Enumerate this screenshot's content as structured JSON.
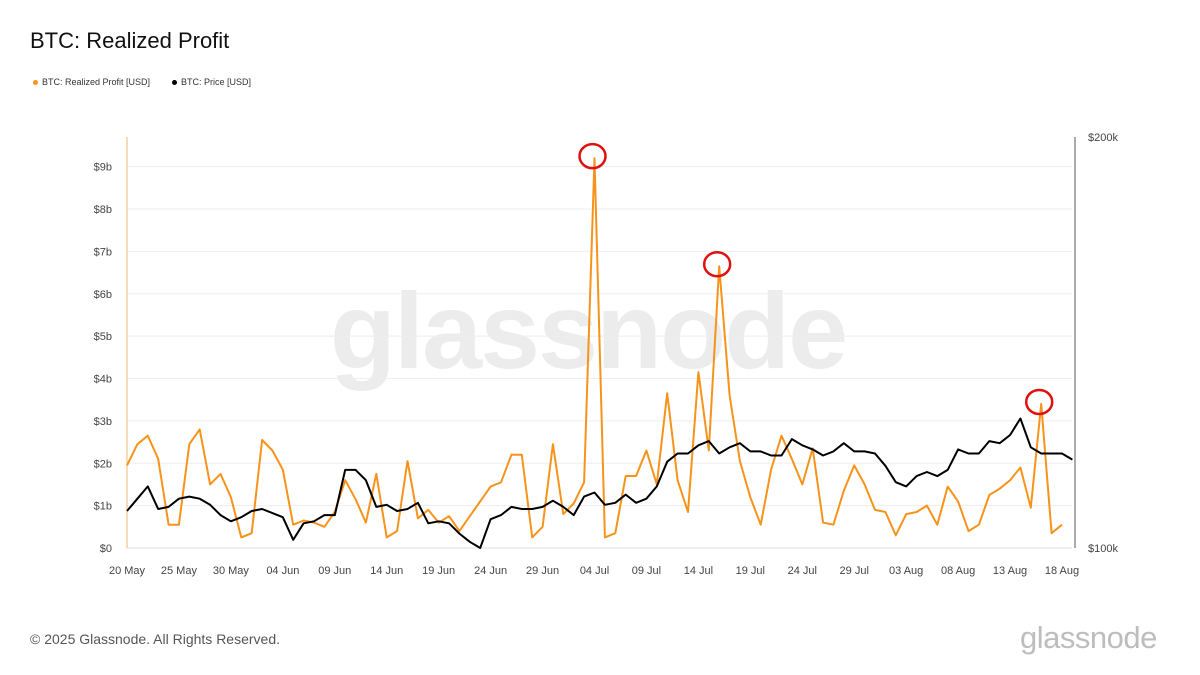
{
  "title": "BTC: Realized Profit",
  "legend": [
    {
      "label": "BTC: Realized Profit [USD]",
      "color": "#f7931a"
    },
    {
      "label": "BTC: Price [USD]",
      "color": "#000000"
    }
  ],
  "footer": "© 2025 Glassnode. All Rights Reserved.",
  "brand": "glassnode",
  "chart_data": {
    "type": "line",
    "x_ticks": [
      "20 May",
      "25 May",
      "30 May",
      "04 Jun",
      "09 Jun",
      "14 Jun",
      "19 Jun",
      "24 Jun",
      "29 Jun",
      "04 Jul",
      "09 Jul",
      "14 Jul",
      "19 Jul",
      "24 Jul",
      "29 Jul",
      "03 Aug",
      "08 Aug",
      "13 Aug",
      "18 Aug"
    ],
    "y_left": {
      "ticks": [
        "$0",
        "$1b",
        "$2b",
        "$3b",
        "$4b",
        "$5b",
        "$6b",
        "$7b",
        "$8b",
        "$9b"
      ],
      "range": [
        0,
        9.7
      ],
      "unit": "b USD"
    },
    "y_right": {
      "ticks": [
        "$100k",
        "$200k"
      ],
      "range": [
        100,
        200
      ],
      "unit": "k USD"
    },
    "highlight_circles_on": [
      "Realized Profit peak 03 Jul",
      "Realized Profit peak 17 Jul",
      "Realized Profit peak 16 Aug"
    ],
    "series": [
      {
        "name": "BTC: Realized Profit [USD]",
        "color": "#f7931a",
        "axis": "left",
        "values": [
          1.95,
          2.45,
          2.65,
          2.1,
          0.55,
          0.55,
          2.45,
          2.8,
          1.5,
          1.75,
          1.2,
          0.25,
          0.35,
          2.55,
          2.3,
          1.85,
          0.55,
          0.65,
          0.6,
          0.5,
          0.85,
          1.6,
          1.15,
          0.6,
          1.75,
          0.25,
          0.4,
          2.05,
          0.7,
          0.9,
          0.6,
          0.75,
          0.4,
          0.75,
          1.1,
          1.45,
          1.55,
          2.2,
          2.2,
          0.25,
          0.5,
          2.45,
          0.8,
          1.05,
          1.55,
          9.2,
          0.25,
          0.35,
          1.7,
          1.7,
          2.3,
          1.5,
          3.65,
          1.6,
          0.85,
          4.15,
          2.3,
          6.65,
          3.6,
          2.05,
          1.2,
          0.55,
          1.85,
          2.65,
          2.1,
          1.5,
          2.35,
          0.6,
          0.55,
          1.35,
          1.95,
          1.5,
          0.9,
          0.85,
          0.3,
          0.8,
          0.85,
          1.0,
          0.55,
          1.45,
          1.1,
          0.4,
          0.55,
          1.25,
          1.4,
          1.6,
          1.9,
          0.95,
          3.4,
          0.35,
          0.55
        ]
      },
      {
        "name": "BTC: Price [USD]",
        "color": "#000000",
        "axis": "right",
        "values": [
          109,
          112,
          115,
          109.5,
          110,
          112,
          112.5,
          112,
          110.5,
          108,
          106.5,
          107.5,
          109,
          109.5,
          108.5,
          107.5,
          102,
          106,
          106.5,
          108,
          108,
          119,
          119,
          116.5,
          110,
          110.5,
          109,
          109.5,
          111,
          106,
          106.5,
          106,
          103.5,
          101.5,
          100,
          107,
          108,
          110,
          109.5,
          109.5,
          110,
          111.5,
          110,
          108,
          112.5,
          113.5,
          110.5,
          111,
          113,
          111,
          112,
          115,
          121,
          123,
          123,
          125,
          126,
          123,
          124.5,
          125.5,
          123.5,
          123.5,
          122.5,
          122.5,
          126.5,
          125,
          124,
          122.5,
          123.5,
          125.5,
          123.5,
          123.5,
          123,
          120,
          116,
          115,
          117.5,
          118.5,
          117.5,
          119,
          124,
          123,
          123,
          126,
          125.5,
          127.5,
          131.5,
          124.5,
          123,
          123,
          123,
          121.5
        ]
      }
    ]
  }
}
